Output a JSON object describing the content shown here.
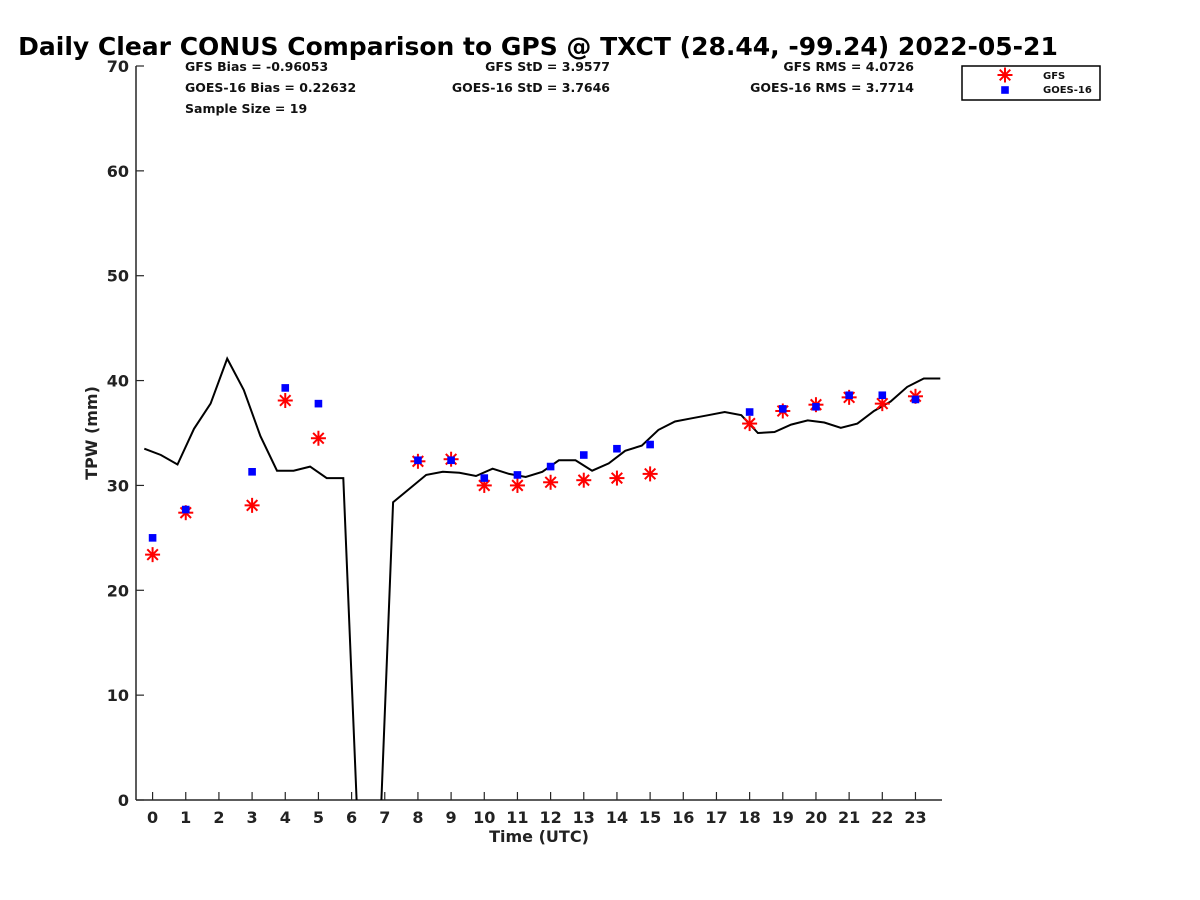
{
  "chart_data": {
    "type": "line",
    "title": "Daily Clear CONUS Comparison to GPS @ TXCT (28.44, -99.24) 2022-05-21",
    "xlabel": "Time (UTC)",
    "ylabel": "TPW (mm)",
    "xlim": [
      -0.5,
      23.8
    ],
    "ylim": [
      0,
      70
    ],
    "xticks": [
      "0",
      "1",
      "2",
      "3",
      "4",
      "5",
      "6",
      "7",
      "8",
      "9",
      "10",
      "11",
      "12",
      "13",
      "14",
      "15",
      "16",
      "17",
      "18",
      "19",
      "20",
      "21",
      "22",
      "23"
    ],
    "yticks": [
      "0",
      "10",
      "20",
      "30",
      "40",
      "50",
      "60",
      "70"
    ],
    "grid": false,
    "legend_position": "top-right",
    "stats": {
      "gfs_bias": "GFS Bias = -0.96053",
      "goes_bias": "GOES-16 Bias = 0.22632",
      "sample": "Sample Size = 19",
      "gfs_std": "GFS StD = 3.9577",
      "goes_std": "GOES-16 StD = 3.7646",
      "gfs_rms": "GFS RMS = 4.0726",
      "goes_rms": "GOES-16 RMS = 3.7714"
    },
    "series": [
      {
        "name": "GPS",
        "style": "line",
        "color": "#000000",
        "points": [
          [
            -0.25,
            33.5
          ],
          [
            0.25,
            32.9
          ],
          [
            0.75,
            32.0
          ],
          [
            1.25,
            35.4
          ],
          [
            1.75,
            37.8
          ],
          [
            2.25,
            42.1
          ],
          [
            2.75,
            39.1
          ],
          [
            3.25,
            34.7
          ],
          [
            3.75,
            31.4
          ],
          [
            4.25,
            31.4
          ],
          [
            4.75,
            31.8
          ],
          [
            5.25,
            30.7
          ],
          [
            5.75,
            30.7
          ],
          [
            6.15,
            0.0
          ]
        ]
      },
      {
        "name": "GPS",
        "style": "line",
        "color": "#000000",
        "points": [
          [
            6.9,
            0.0
          ],
          [
            7.25,
            28.4
          ],
          [
            7.75,
            29.7
          ],
          [
            8.25,
            31.0
          ],
          [
            8.75,
            31.3
          ],
          [
            9.25,
            31.2
          ],
          [
            9.75,
            30.9
          ],
          [
            10.25,
            31.6
          ],
          [
            10.75,
            31.1
          ],
          [
            11.25,
            30.8
          ],
          [
            11.75,
            31.3
          ],
          [
            12.25,
            32.4
          ],
          [
            12.75,
            32.4
          ],
          [
            13.25,
            31.4
          ],
          [
            13.75,
            32.1
          ],
          [
            14.25,
            33.3
          ],
          [
            14.75,
            33.8
          ],
          [
            15.25,
            35.3
          ],
          [
            15.75,
            36.1
          ],
          [
            16.25,
            36.4
          ],
          [
            16.75,
            36.7
          ],
          [
            17.25,
            37.0
          ],
          [
            17.75,
            36.7
          ],
          [
            18.25,
            35.0
          ],
          [
            18.75,
            35.1
          ],
          [
            19.25,
            35.8
          ],
          [
            19.75,
            36.2
          ],
          [
            20.25,
            36.0
          ],
          [
            20.75,
            35.5
          ],
          [
            21.25,
            35.9
          ],
          [
            21.75,
            37.1
          ],
          [
            22.25,
            38.0
          ],
          [
            22.75,
            39.4
          ],
          [
            23.25,
            40.2
          ],
          [
            23.75,
            40.2
          ]
        ]
      },
      {
        "name": "GFS",
        "style": "marker",
        "marker": "asterisk",
        "color": "#ff0000",
        "x": [
          0,
          1,
          3,
          4,
          5,
          8,
          9,
          10,
          11,
          12,
          13,
          14,
          15,
          18,
          19,
          20,
          21,
          22,
          23
        ],
        "y": [
          23.4,
          27.4,
          28.1,
          38.1,
          34.5,
          32.3,
          32.5,
          30.0,
          30.0,
          30.3,
          30.5,
          30.7,
          31.1,
          35.9,
          37.1,
          37.7,
          38.4,
          37.8,
          38.5
        ]
      },
      {
        "name": "GOES-16",
        "style": "marker",
        "marker": "square",
        "color": "#0000ff",
        "x": [
          0,
          1,
          3,
          4,
          5,
          8,
          9,
          10,
          11,
          12,
          13,
          14,
          15,
          18,
          19,
          20,
          21,
          22,
          23
        ],
        "y": [
          25.0,
          27.7,
          31.3,
          39.3,
          37.8,
          32.4,
          32.4,
          30.7,
          31.0,
          31.8,
          32.9,
          33.5,
          33.9,
          37.0,
          37.3,
          37.5,
          38.6,
          38.6,
          38.2
        ]
      }
    ]
  }
}
